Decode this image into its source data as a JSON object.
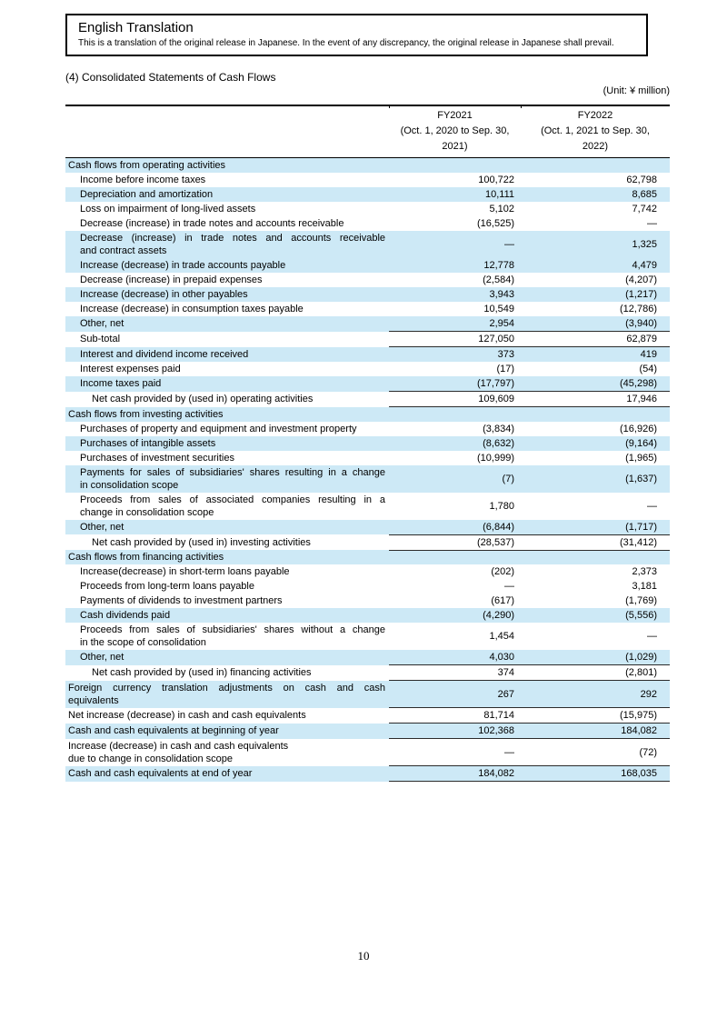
{
  "translation_box": {
    "title": "English Translation",
    "body": "This is a translation of the original release in Japanese. In the event of any discrepancy, the original release in Japanese shall prevail."
  },
  "section_title": "(4) Consolidated Statements of Cash Flows",
  "unit_label": "(Unit: ¥ million)",
  "page": {
    "number": "10"
  },
  "colors": {
    "row_shade": "#cde9f6",
    "rule": "#2b2b2b"
  },
  "table": {
    "columns": [
      {
        "fy": "FY2021",
        "period_line1": "(Oct. 1, 2020 to Sep. 30,",
        "period_line2": "2021)"
      },
      {
        "fy": "FY2022",
        "period_line1": "(Oct. 1, 2021 to Sep. 30,",
        "period_line2": "2022)"
      }
    ],
    "rows": [
      {
        "label": "Cash flows from operating activities",
        "v1": "",
        "v2": "",
        "indent": 0,
        "shaded": true
      },
      {
        "label": "Income before income taxes",
        "v1": "100,722",
        "v2": "62,798",
        "indent": 1
      },
      {
        "label": "Depreciation and amortization",
        "v1": "10,111",
        "v2": "8,685",
        "indent": 1,
        "shaded": true
      },
      {
        "label": "Loss on impairment of long-lived assets",
        "v1": "5,102",
        "v2": "7,742",
        "indent": 1
      },
      {
        "label": "Decrease (increase) in trade notes and accounts receivable",
        "v1": "(16,525)",
        "v2": "—",
        "indent": 1
      },
      {
        "label": "Decrease (increase) in trade notes and accounts receivable",
        "label2": "and contract assets",
        "justify": true,
        "v1": "—",
        "v2": "1,325",
        "indent": 1,
        "shaded": true
      },
      {
        "label": "Increase (decrease) in trade accounts payable",
        "v1": "12,778",
        "v2": "4,479",
        "indent": 1,
        "shaded": true
      },
      {
        "label": "Decrease (increase) in prepaid expenses",
        "v1": "(2,584)",
        "v2": "(4,207)",
        "indent": 1
      },
      {
        "label": "Increase (decrease) in other payables",
        "v1": "3,943",
        "v2": "(1,217)",
        "indent": 1,
        "shaded": true
      },
      {
        "label": "Increase (decrease) in consumption taxes payable",
        "v1": "10,549",
        "v2": "(12,786)",
        "indent": 1
      },
      {
        "label": "Other, net",
        "v1": "2,954",
        "v2": "(3,940)",
        "indent": 1,
        "shaded": true,
        "rule": true
      },
      {
        "label": "Sub-total",
        "v1": "127,050",
        "v2": "62,879",
        "indent": 1,
        "rule": true
      },
      {
        "label": "Interest and dividend income received",
        "v1": "373",
        "v2": "419",
        "indent": 1,
        "shaded": true
      },
      {
        "label": "Interest expenses paid",
        "v1": "(17)",
        "v2": "(54)",
        "indent": 1
      },
      {
        "label": "Income taxes paid",
        "v1": "(17,797)",
        "v2": "(45,298)",
        "indent": 1,
        "shaded": true,
        "rule": true
      },
      {
        "label": "Net cash provided by (used in) operating activities",
        "v1": "109,609",
        "v2": "17,946",
        "indent": 2,
        "rule": true
      },
      {
        "label": "Cash flows from investing activities",
        "v1": "",
        "v2": "",
        "indent": 0,
        "shaded": true
      },
      {
        "label": "Purchases of property and equipment and investment property",
        "v1": "(3,834)",
        "v2": "(16,926)",
        "indent": 1
      },
      {
        "label": "Purchases of intangible assets",
        "v1": "(8,632)",
        "v2": "(9,164)",
        "indent": 1,
        "shaded": true
      },
      {
        "label": "Purchases of investment securities",
        "v1": "(10,999)",
        "v2": "(1,965)",
        "indent": 1
      },
      {
        "label": "Payments for sales of subsidiaries' shares resulting in a change",
        "label2": "in consolidation scope",
        "justify": true,
        "v1": "(7)",
        "v2": "(1,637)",
        "indent": 1,
        "shaded": true
      },
      {
        "label": "Proceeds from sales of associated companies resulting in a",
        "label2": "change in consolidation scope",
        "justify": true,
        "v1": "1,780",
        "v2": "—",
        "indent": 1
      },
      {
        "label": "Other, net",
        "v1": "(6,844)",
        "v2": "(1,717)",
        "indent": 1,
        "shaded": true,
        "rule": true
      },
      {
        "label": "Net cash provided by (used in) investing activities",
        "v1": "(28,537)",
        "v2": "(31,412)",
        "indent": 2,
        "rule": true
      },
      {
        "label": "Cash flows from financing activities",
        "v1": "",
        "v2": "",
        "indent": 0,
        "shaded": true
      },
      {
        "label": "Increase(decrease) in short-term loans payable",
        "v1": "(202)",
        "v2": "2,373",
        "indent": 1
      },
      {
        "label": "Proceeds from long-term loans payable",
        "v1": "—",
        "v2": "3,181",
        "indent": 1
      },
      {
        "label": "Payments of dividends to investment partners",
        "v1": "(617)",
        "v2": "(1,769)",
        "indent": 1
      },
      {
        "label": "Cash dividends paid",
        "v1": "(4,290)",
        "v2": "(5,556)",
        "indent": 1,
        "shaded": true
      },
      {
        "label": "Proceeds from sales of subsidiaries' shares without a change",
        "label2": "in the scope of consolidation",
        "justify": true,
        "v1": "1,454",
        "v2": "—",
        "indent": 1
      },
      {
        "label": "Other, net",
        "v1": "4,030",
        "v2": "(1,029)",
        "indent": 1,
        "shaded": true,
        "rule": true
      },
      {
        "label": "Net cash provided by (used in) financing activities",
        "v1": "374",
        "v2": "(2,801)",
        "indent": 2,
        "rule": true
      },
      {
        "label": "Foreign currency translation adjustments on cash and cash",
        "label2": "equivalents",
        "justify": true,
        "v1": "267",
        "v2": "292",
        "indent": 0,
        "shaded": true,
        "rule": true
      },
      {
        "label": "Net increase (decrease) in cash and cash equivalents",
        "v1": "81,714",
        "v2": "(15,975)",
        "indent": 0,
        "rule": true
      },
      {
        "label": "Cash and cash equivalents at beginning of year",
        "v1": "102,368",
        "v2": "184,082",
        "indent": 0,
        "shaded": true,
        "rule": true
      },
      {
        "label": "Increase (decrease) in cash and cash equivalents",
        "label2": "due to change in consolidation scope",
        "justify": false,
        "v1": "—",
        "v2": "(72)",
        "indent": 0,
        "rule": true
      },
      {
        "label": "Cash and cash equivalents at end of year",
        "v1": "184,082",
        "v2": "168,035",
        "indent": 0,
        "shaded": true,
        "rule": true
      }
    ]
  }
}
